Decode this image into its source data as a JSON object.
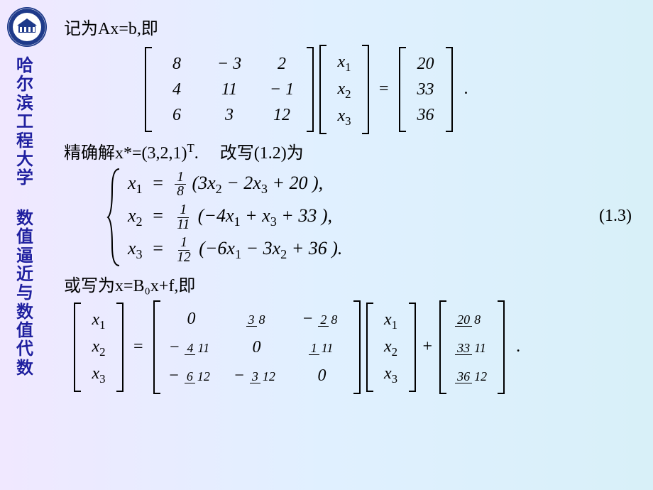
{
  "logo": {
    "ring_color": "#1e3a8a",
    "inner_color": "#ffffff",
    "building_color": "#1e3a8a"
  },
  "sidebar": {
    "text1": "哈尔滨工程大学",
    "text2": "数值逼近与数值代数"
  },
  "line1": "记为Ax=b,即",
  "matrixA": {
    "r1": [
      "8",
      "− 3",
      "2"
    ],
    "r2": [
      "4",
      "11",
      "− 1"
    ],
    "r3": [
      "6",
      "3",
      "12"
    ]
  },
  "vecX": [
    "x",
    "x",
    "x"
  ],
  "vecX_sub": [
    "1",
    "2",
    "3"
  ],
  "vecB": [
    "20",
    "33",
    "36"
  ],
  "period": ".",
  "line2a": "精确解x*=(3,2,1)",
  "line2a_sup": "T",
  "line2a_end": ".",
  "line2b": "改写(1.2)为",
  "system": {
    "eq1_lhs": "x",
    "eq1_sub": "1",
    "eq1_f_num": "1",
    "eq1_f_den": "8",
    "eq1_rhs": "(3x₂ − 2x₃ + 20),",
    "eq2_sub": "2",
    "eq2_f_num": "1",
    "eq2_f_den": "11",
    "eq2_rhs": "(−4x₁ + x₃ + 33),",
    "eq3_sub": "3",
    "eq3_f_num": "1",
    "eq3_f_den": "12",
    "eq3_rhs": "(−6x₁ − 3x₂ + 36).",
    "eqnum": "(1.3)"
  },
  "line3": "或写为x=B₀x+f,即",
  "matrixB": {
    "r1": [
      {
        "txt": "0",
        "frac": null
      },
      {
        "num": "3",
        "den": "8",
        "neg": false
      },
      {
        "num": "2",
        "den": "8",
        "neg": true
      }
    ],
    "r2": [
      {
        "num": "4",
        "den": "11",
        "neg": true
      },
      {
        "txt": "0",
        "frac": null
      },
      {
        "num": "1",
        "den": "11",
        "neg": false
      }
    ],
    "r3": [
      {
        "num": "6",
        "den": "12",
        "neg": true
      },
      {
        "num": "3",
        "den": "12",
        "neg": true
      },
      {
        "txt": "0",
        "frac": null
      }
    ]
  },
  "vecF": [
    {
      "num": "20",
      "den": "8"
    },
    {
      "num": "33",
      "den": "11"
    },
    {
      "num": "36",
      "den": "12"
    }
  ],
  "colors": {
    "text": "#000000",
    "sidebar_text": "#2020a0",
    "bg_start": "#f0e8ff",
    "bg_end": "#d8f0f8"
  }
}
